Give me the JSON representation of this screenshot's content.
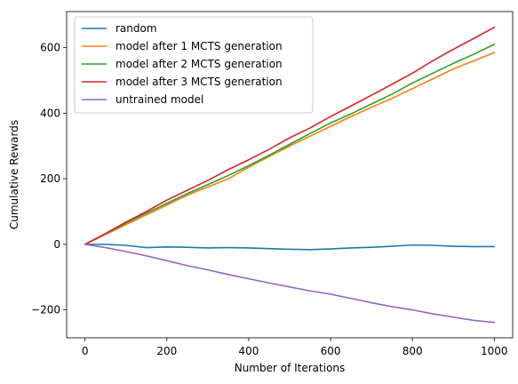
{
  "chart_data": {
    "type": "line",
    "title": "",
    "xlabel": "Number of Iterations",
    "ylabel": "Cumulative Rewards",
    "xlim": [
      -45,
      1045
    ],
    "ylim": [
      -285,
      710
    ],
    "xticks": [
      0,
      200,
      400,
      600,
      800,
      1000
    ],
    "xtick_labels": [
      "0",
      "200",
      "400",
      "600",
      "800",
      "1000"
    ],
    "yticks": [
      -200,
      0,
      200,
      400,
      600
    ],
    "ytick_labels": [
      "−200",
      "0",
      "200",
      "400",
      "600"
    ],
    "grid": false,
    "legend_position": "top-left",
    "x": [
      0,
      50,
      100,
      150,
      200,
      250,
      300,
      350,
      400,
      450,
      500,
      550,
      600,
      650,
      700,
      750,
      800,
      850,
      900,
      950,
      1000
    ],
    "series": [
      {
        "name": "random",
        "color": "#1f77b4",
        "values": [
          0,
          0,
          -3,
          -10,
          -8,
          -9,
          -11,
          -10,
          -11,
          -13,
          -15,
          -16,
          -14,
          -11,
          -9,
          -6,
          -2,
          -3,
          -6,
          -7,
          -7
        ]
      },
      {
        "name": "model after 1 MCTS generation",
        "color": "#ff7f0e",
        "values": [
          0,
          30,
          60,
          90,
          120,
          150,
          175,
          200,
          235,
          268,
          300,
          330,
          360,
          390,
          418,
          445,
          475,
          505,
          535,
          560,
          585
        ]
      },
      {
        "name": "model after 2 MCTS generation",
        "color": "#2ca02c",
        "values": [
          0,
          32,
          65,
          95,
          125,
          155,
          182,
          210,
          240,
          272,
          305,
          338,
          370,
          398,
          428,
          458,
          492,
          522,
          552,
          580,
          610
        ]
      },
      {
        "name": "model after 3 MCTS generation",
        "color": "#d62728",
        "values": [
          0,
          33,
          68,
          100,
          135,
          165,
          195,
          228,
          258,
          290,
          325,
          355,
          390,
          422,
          455,
          488,
          522,
          560,
          595,
          628,
          662
        ]
      },
      {
        "name": "untrained model",
        "color": "#9467bd",
        "values": [
          0,
          -10,
          -22,
          -35,
          -50,
          -65,
          -78,
          -92,
          -105,
          -118,
          -130,
          -142,
          -152,
          -165,
          -178,
          -190,
          -200,
          -212,
          -222,
          -232,
          -238
        ]
      }
    ]
  }
}
